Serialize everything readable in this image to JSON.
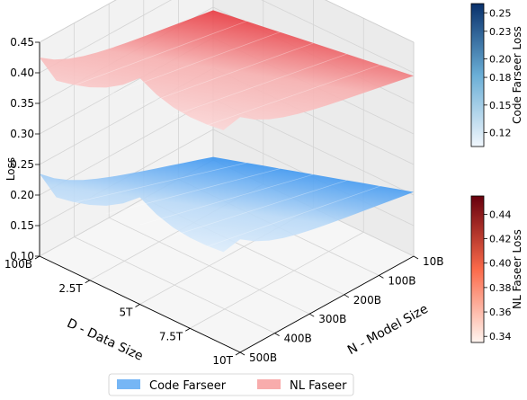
{
  "chart_data": {
    "type": "surface3d",
    "x_axis": {
      "label": "N - Model Size",
      "ticks": [
        "10B",
        "100B",
        "200B",
        "300B",
        "400B",
        "500B"
      ]
    },
    "y_axis": {
      "label": "D - Data Size",
      "ticks": [
        "100B",
        "2.5T",
        "5T",
        "7.5T",
        "10T"
      ]
    },
    "z_axis": {
      "label": "Loss",
      "ticks": [
        "0.10",
        "0.15",
        "0.20",
        "0.25",
        "0.30",
        "0.35",
        "0.40",
        "0.45"
      ],
      "zlim": [
        0.1,
        0.45
      ]
    },
    "series": [
      {
        "name": "Code Farseer",
        "color": "#6fb2f4",
        "corners": {
          "n10b_d100b": 0.255,
          "n500b_d100b": 0.205,
          "n10b_d10t": 0.205,
          "n500b_d10t": 0.105
        }
      },
      {
        "name": "NL Faseer",
        "color": "#f8a8a8",
        "corners": {
          "n10b_d100b": 0.455,
          "n500b_d100b": 0.395,
          "n10b_d10t": 0.395,
          "n500b_d10t": 0.345
        }
      }
    ],
    "colorbars": [
      {
        "label": "Code Farseer Loss",
        "ticks": [
          "0.12",
          "0.15",
          "0.18",
          "0.20",
          "0.23",
          "0.25"
        ],
        "range": [
          0.105,
          0.26
        ],
        "color_low": "#f1f7fd",
        "color_high": "#08306b"
      },
      {
        "label": "NL Faseer Loss",
        "ticks": [
          "0.34",
          "0.36",
          "0.38",
          "0.40",
          "0.42",
          "0.44"
        ],
        "range": [
          0.335,
          0.455
        ],
        "color_low": "#fff5f0",
        "color_high": "#67000d"
      }
    ],
    "legend": {
      "placement": "bottom-center",
      "entries": [
        {
          "label": "Code Farseer",
          "color": "#6fb2f4"
        },
        {
          "label": "NL Faseer",
          "color": "#f8a8a8"
        }
      ]
    }
  }
}
